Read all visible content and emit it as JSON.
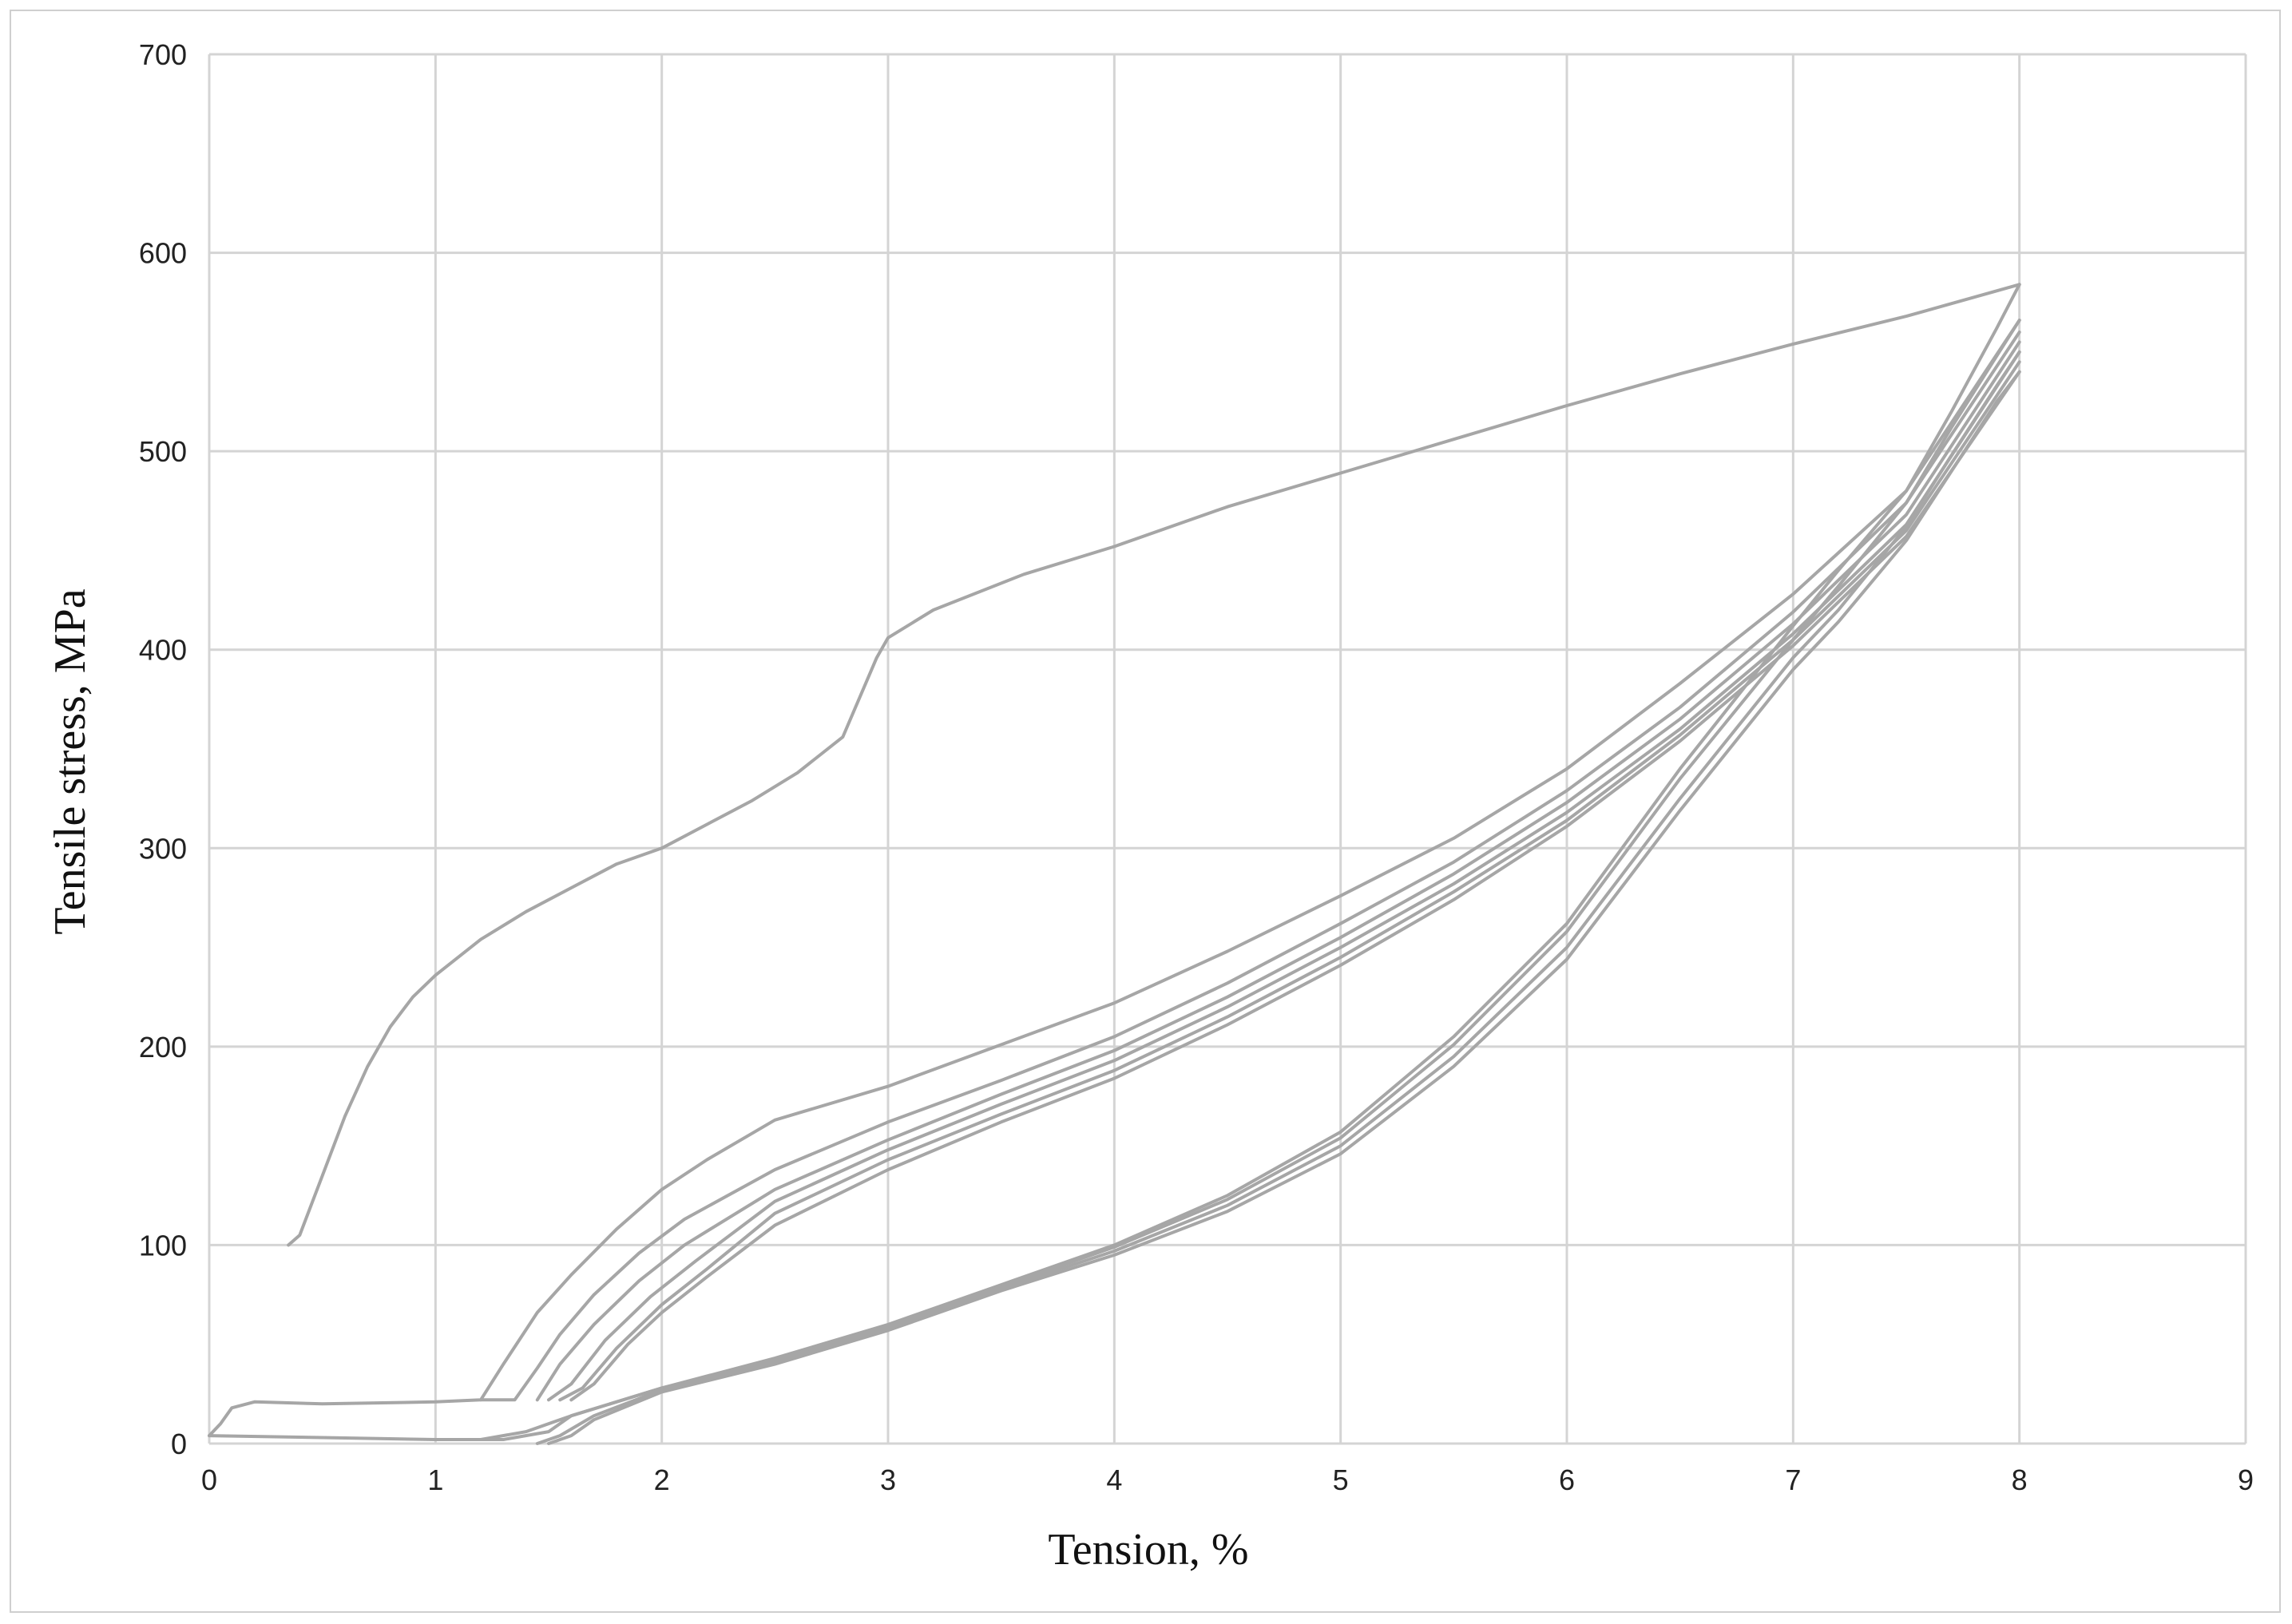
{
  "chart_data": {
    "type": "line",
    "title": "",
    "xlabel": "Tension, %",
    "ylabel": "Tensile stress, MPa",
    "xlim": [
      0,
      9
    ],
    "ylim": [
      0,
      700
    ],
    "xticks": [
      "0",
      "1",
      "2",
      "3",
      "4",
      "5",
      "6",
      "7",
      "8",
      "9"
    ],
    "yticks": [
      "0",
      "100",
      "200",
      "300",
      "400",
      "500",
      "600",
      "700"
    ],
    "grid": true,
    "legend": "none",
    "line_color": "#a6a6a6",
    "series": [
      {
        "values": [
          [
            0.35,
            100
          ],
          [
            0.4,
            105
          ],
          [
            0.5,
            135
          ],
          [
            0.6,
            165
          ],
          [
            0.7,
            190
          ],
          [
            0.8,
            210
          ],
          [
            0.9,
            225
          ],
          [
            1.0,
            236
          ],
          [
            1.2,
            254
          ],
          [
            1.4,
            268
          ],
          [
            1.6,
            280
          ],
          [
            1.8,
            292
          ],
          [
            2.0,
            300
          ],
          [
            2.2,
            312
          ],
          [
            2.4,
            324
          ],
          [
            2.6,
            338
          ],
          [
            2.8,
            356
          ],
          [
            2.95,
            396
          ],
          [
            3.0,
            406
          ],
          [
            3.2,
            420
          ],
          [
            3.6,
            438
          ],
          [
            4.0,
            452
          ],
          [
            4.5,
            472
          ],
          [
            5.0,
            489
          ],
          [
            5.5,
            506
          ],
          [
            6.0,
            523
          ],
          [
            6.5,
            539
          ],
          [
            7.0,
            554
          ],
          [
            7.5,
            568
          ],
          [
            8.0,
            584
          ]
        ]
      },
      {
        "values": [
          [
            8.0,
            584
          ],
          [
            7.9,
            562
          ],
          [
            7.7,
            520
          ],
          [
            7.5,
            480
          ],
          [
            7.2,
            440
          ],
          [
            7.0,
            412
          ],
          [
            6.5,
            340
          ],
          [
            6.0,
            262
          ],
          [
            5.5,
            205
          ],
          [
            5.0,
            157
          ],
          [
            4.5,
            125
          ],
          [
            4.0,
            100
          ],
          [
            3.5,
            80
          ],
          [
            3.0,
            60
          ],
          [
            2.5,
            43
          ],
          [
            2.0,
            28
          ],
          [
            1.6,
            14
          ],
          [
            1.4,
            6
          ],
          [
            1.2,
            2
          ],
          [
            1.0,
            2
          ],
          [
            0.5,
            3
          ],
          [
            0.0,
            4
          ]
        ]
      },
      {
        "values": [
          [
            0.0,
            4
          ],
          [
            0.05,
            10
          ],
          [
            0.1,
            18
          ],
          [
            0.2,
            21
          ],
          [
            0.5,
            20
          ],
          [
            1.0,
            21
          ],
          [
            1.2,
            22
          ],
          [
            1.3,
            40
          ],
          [
            1.45,
            66
          ],
          [
            1.6,
            85
          ],
          [
            1.8,
            108
          ],
          [
            2.0,
            128
          ],
          [
            2.2,
            143
          ],
          [
            2.5,
            163
          ],
          [
            3.0,
            180
          ],
          [
            3.5,
            201
          ],
          [
            4.0,
            222
          ],
          [
            4.5,
            248
          ],
          [
            5.0,
            276
          ],
          [
            5.5,
            305
          ],
          [
            6.0,
            340
          ],
          [
            6.5,
            383
          ],
          [
            7.0,
            428
          ],
          [
            7.5,
            480
          ],
          [
            8.0,
            566
          ]
        ]
      },
      {
        "values": [
          [
            8.0,
            566
          ],
          [
            7.9,
            548
          ],
          [
            7.7,
            512
          ],
          [
            7.5,
            474
          ],
          [
            7.2,
            432
          ],
          [
            7.0,
            405
          ],
          [
            6.5,
            335
          ],
          [
            6.0,
            258
          ],
          [
            5.5,
            201
          ],
          [
            5.0,
            154
          ],
          [
            4.5,
            123
          ],
          [
            4.0,
            99
          ],
          [
            3.5,
            79
          ],
          [
            3.0,
            59
          ],
          [
            2.5,
            42
          ],
          [
            2.0,
            28
          ],
          [
            1.6,
            14
          ],
          [
            1.5,
            6
          ],
          [
            1.3,
            2
          ],
          [
            1.2,
            2
          ]
        ]
      },
      {
        "values": [
          [
            1.2,
            22
          ],
          [
            1.35,
            22
          ],
          [
            1.45,
            38
          ],
          [
            1.55,
            55
          ],
          [
            1.7,
            75
          ],
          [
            1.9,
            96
          ],
          [
            2.1,
            113
          ],
          [
            2.5,
            138
          ],
          [
            3.0,
            162
          ],
          [
            3.5,
            183
          ],
          [
            4.0,
            205
          ],
          [
            4.5,
            232
          ],
          [
            5.0,
            262
          ],
          [
            5.5,
            293
          ],
          [
            6.0,
            329
          ],
          [
            6.5,
            371
          ],
          [
            7.0,
            419
          ],
          [
            7.5,
            474
          ],
          [
            8.0,
            560
          ]
        ]
      },
      {
        "values": [
          [
            1.45,
            22
          ],
          [
            1.55,
            40
          ],
          [
            1.7,
            60
          ],
          [
            1.9,
            82
          ],
          [
            2.1,
            100
          ],
          [
            2.5,
            128
          ],
          [
            3.0,
            153
          ],
          [
            3.5,
            176
          ],
          [
            4.0,
            198
          ],
          [
            4.5,
            225
          ],
          [
            5.0,
            255
          ],
          [
            5.5,
            287
          ],
          [
            6.0,
            323
          ],
          [
            6.5,
            365
          ],
          [
            7.0,
            413
          ],
          [
            7.5,
            468
          ],
          [
            8.0,
            555
          ]
        ]
      },
      {
        "values": [
          [
            1.5,
            22
          ],
          [
            1.6,
            30
          ],
          [
            1.75,
            52
          ],
          [
            1.95,
            74
          ],
          [
            2.15,
            92
          ],
          [
            2.5,
            122
          ],
          [
            3.0,
            148
          ],
          [
            3.5,
            171
          ],
          [
            4.0,
            193
          ],
          [
            4.5,
            220
          ],
          [
            5.0,
            250
          ],
          [
            5.5,
            282
          ],
          [
            6.0,
            318
          ],
          [
            6.5,
            360
          ],
          [
            7.0,
            408
          ],
          [
            7.5,
            463
          ],
          [
            8.0,
            550
          ]
        ]
      },
      {
        "values": [
          [
            1.55,
            22
          ],
          [
            1.65,
            28
          ],
          [
            1.8,
            48
          ],
          [
            2.0,
            70
          ],
          [
            2.2,
            88
          ],
          [
            2.5,
            116
          ],
          [
            3.0,
            143
          ],
          [
            3.5,
            166
          ],
          [
            4.0,
            188
          ],
          [
            4.5,
            215
          ],
          [
            5.0,
            245
          ],
          [
            5.5,
            278
          ],
          [
            6.0,
            314
          ],
          [
            6.5,
            357
          ],
          [
            7.0,
            405
          ],
          [
            7.5,
            460
          ],
          [
            8.0,
            545
          ]
        ]
      },
      {
        "values": [
          [
            1.6,
            22
          ],
          [
            1.7,
            30
          ],
          [
            1.85,
            50
          ],
          [
            2.0,
            66
          ],
          [
            2.2,
            84
          ],
          [
            2.5,
            110
          ],
          [
            3.0,
            138
          ],
          [
            3.5,
            162
          ],
          [
            4.0,
            184
          ],
          [
            4.5,
            211
          ],
          [
            5.0,
            241
          ],
          [
            5.5,
            274
          ],
          [
            6.0,
            311
          ],
          [
            6.5,
            354
          ],
          [
            7.0,
            402
          ],
          [
            7.5,
            457
          ],
          [
            8.0,
            540
          ]
        ]
      },
      {
        "values": [
          [
            8.0,
            550
          ],
          [
            7.9,
            533
          ],
          [
            7.7,
            498
          ],
          [
            7.5,
            462
          ],
          [
            7.2,
            420
          ],
          [
            7.0,
            396
          ],
          [
            6.5,
            325
          ],
          [
            6.0,
            250
          ],
          [
            5.5,
            195
          ],
          [
            5.0,
            150
          ],
          [
            4.5,
            120
          ],
          [
            4.0,
            97
          ],
          [
            3.5,
            78
          ],
          [
            3.0,
            58
          ],
          [
            2.5,
            41
          ],
          [
            2.0,
            27
          ],
          [
            1.7,
            14
          ],
          [
            1.55,
            4
          ],
          [
            1.45,
            0
          ]
        ]
      },
      {
        "values": [
          [
            8.0,
            540
          ],
          [
            7.9,
            525
          ],
          [
            7.7,
            490
          ],
          [
            7.5,
            455
          ],
          [
            7.2,
            414
          ],
          [
            7.0,
            390
          ],
          [
            6.5,
            319
          ],
          [
            6.0,
            244
          ],
          [
            5.5,
            190
          ],
          [
            5.0,
            146
          ],
          [
            4.5,
            117
          ],
          [
            4.0,
            95
          ],
          [
            3.5,
            77
          ],
          [
            3.0,
            57
          ],
          [
            2.5,
            40
          ],
          [
            2.0,
            26
          ],
          [
            1.7,
            12
          ],
          [
            1.6,
            4
          ],
          [
            1.5,
            0
          ]
        ]
      }
    ]
  }
}
